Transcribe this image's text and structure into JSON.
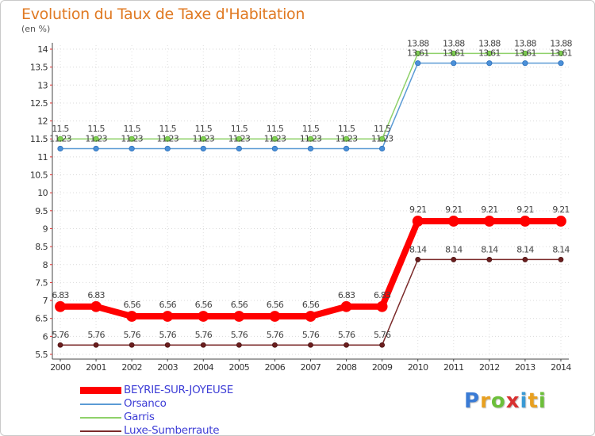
{
  "title": "Evolution du Taux de Taxe d'Habitation",
  "unit": "(en %)",
  "logo": {
    "letters": [
      "P",
      "r",
      "o",
      "x",
      "i",
      "t",
      "i"
    ],
    "colors": [
      "#3a7bd5",
      "#e8a020",
      "#6cbf3a",
      "#d83030",
      "#3a9ad5",
      "#e8a020",
      "#6cbf3a"
    ]
  },
  "chart_data": {
    "type": "line",
    "title": "Evolution du Taux de Taxe d'Habitation",
    "ylabel": "(en %)",
    "xlabel": "",
    "x": [
      "2000",
      "2001",
      "2002",
      "2003",
      "2004",
      "2005",
      "2006",
      "2007",
      "2008",
      "2009",
      "2010",
      "2011",
      "2012",
      "2013",
      "2014"
    ],
    "ylim": [
      5.5,
      14
    ],
    "yticks": [
      "5.5",
      "6",
      "6.5",
      "7",
      "7.5",
      "8",
      "8.5",
      "9",
      "9.5",
      "10",
      "10.5",
      "11",
      "11.5",
      "12",
      "12.5",
      "13",
      "13.5",
      "14"
    ],
    "series": [
      {
        "name": "BEYRIE-SUR-JOYEUSE",
        "color": "#ff0000",
        "values": [
          6.83,
          6.83,
          6.56,
          6.56,
          6.56,
          6.56,
          6.56,
          6.56,
          6.83,
          6.83,
          9.21,
          9.21,
          9.21,
          9.21,
          9.21
        ],
        "labels": [
          "6.83",
          "6.83",
          "6.56",
          "6.56",
          "6.56",
          "6.56",
          "6.56",
          "6.56",
          "6.83",
          "6.83",
          "9.21",
          "9.21",
          "9.21",
          "9.21",
          "9.21"
        ]
      },
      {
        "name": "Orsanco",
        "color": "#5b9bd5",
        "values": [
          11.23,
          11.23,
          11.23,
          11.23,
          11.23,
          11.23,
          11.23,
          11.23,
          11.23,
          11.23,
          13.61,
          13.61,
          13.61,
          13.61,
          13.61
        ],
        "labels": [
          "11.23",
          "11.23",
          "11.23",
          "11.23",
          "11.23",
          "11.23",
          "11.23",
          "11.23",
          "11.23",
          "11.23",
          "13.61",
          "13.61",
          "13.61",
          "13.61",
          "13.61"
        ]
      },
      {
        "name": "Garris",
        "color": "#8fd16a",
        "values": [
          11.5,
          11.5,
          11.5,
          11.5,
          11.5,
          11.5,
          11.5,
          11.5,
          11.5,
          11.5,
          13.88,
          13.88,
          13.88,
          13.88,
          13.88
        ],
        "labels": [
          "11.5",
          "11.5",
          "11.5",
          "11.5",
          "11.5",
          "11.5",
          "11.5",
          "11.5",
          "11.5",
          "11.5",
          "13.88",
          "13.88",
          "13.88",
          "13.88",
          "13.88"
        ]
      },
      {
        "name": "Luxe-Sumberraute",
        "color": "#7b2a2a",
        "values": [
          5.76,
          5.76,
          5.76,
          5.76,
          5.76,
          5.76,
          5.76,
          5.76,
          5.76,
          5.76,
          8.14,
          8.14,
          8.14,
          8.14,
          8.14
        ],
        "labels": [
          "5.76",
          "5.76",
          "5.76",
          "5.76",
          "5.76",
          "5.76",
          "5.76",
          "5.76",
          "5.76",
          "5.76",
          "8.14",
          "8.14",
          "8.14",
          "8.14",
          "8.14"
        ]
      }
    ],
    "legend_position": "bottom-left"
  }
}
